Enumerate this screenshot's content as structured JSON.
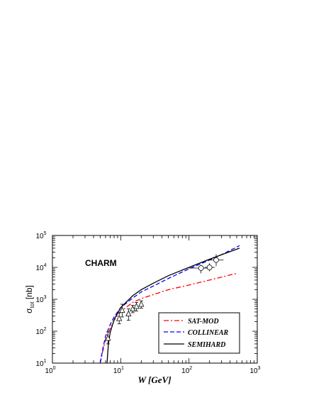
{
  "chart_data": {
    "type": "line",
    "xlabel": "W [GeV]",
    "ylabel": "σ_tot [nb]",
    "ylabel_main": "σ",
    "ylabel_sub": "tot",
    "ylabel_unit": " [nb]",
    "annotation": "CHARM",
    "x_scale": "log",
    "y_scale": "log",
    "xlim": [
      1,
      1000
    ],
    "ylim": [
      10,
      100000
    ],
    "x_ticks": [
      {
        "value": 1,
        "base": "10",
        "exp": "0"
      },
      {
        "value": 10,
        "base": "10",
        "exp": "1"
      },
      {
        "value": 100,
        "base": "10",
        "exp": "2"
      },
      {
        "value": 1000,
        "base": "10",
        "exp": "3"
      }
    ],
    "y_ticks": [
      {
        "value": 10,
        "base": "10",
        "exp": "1"
      },
      {
        "value": 100,
        "base": "10",
        "exp": "2"
      },
      {
        "value": 1000,
        "base": "10",
        "exp": "3"
      },
      {
        "value": 10000,
        "base": "10",
        "exp": "4"
      },
      {
        "value": 100000,
        "base": "10",
        "exp": "5"
      }
    ],
    "grid": false,
    "legend_position": "bottom-right",
    "series": [
      {
        "name": "SAT-MOD",
        "color": "#ff0000",
        "dash": "dashdot",
        "points": [
          [
            5,
            10
          ],
          [
            5.5,
            25
          ],
          [
            6,
            55
          ],
          [
            7,
            120
          ],
          [
            8,
            220
          ],
          [
            10,
            420
          ],
          [
            15,
            800
          ],
          [
            20,
            1050
          ],
          [
            30,
            1400
          ],
          [
            50,
            2000
          ],
          [
            100,
            2800
          ],
          [
            200,
            4000
          ],
          [
            500,
            6500
          ]
        ]
      },
      {
        "name": "COLLINEAR",
        "color": "#0000ff",
        "dash": "dash",
        "points": [
          [
            5,
            10
          ],
          [
            5.5,
            30
          ],
          [
            6,
            70
          ],
          [
            7,
            160
          ],
          [
            8,
            280
          ],
          [
            10,
            550
          ],
          [
            15,
            1100
          ],
          [
            20,
            1700
          ],
          [
            30,
            2600
          ],
          [
            50,
            4500
          ],
          [
            100,
            9000
          ],
          [
            200,
            17000
          ],
          [
            300,
            25000
          ],
          [
            550,
            48000
          ]
        ]
      },
      {
        "name": "SEMIHARD",
        "color": "#000000",
        "dash": "solid",
        "points": [
          [
            6.3,
            10
          ],
          [
            6.6,
            40
          ],
          [
            7,
            90
          ],
          [
            8,
            230
          ],
          [
            10,
            550
          ],
          [
            15,
            1300
          ],
          [
            20,
            2000
          ],
          [
            30,
            3200
          ],
          [
            50,
            5500
          ],
          [
            100,
            10000
          ],
          [
            200,
            18000
          ],
          [
            300,
            25000
          ],
          [
            550,
            40000
          ]
        ]
      }
    ],
    "data_points": {
      "triangles": [
        {
          "x": 6.5,
          "y": 60,
          "err_lo": 40,
          "err_hi": 95
        },
        {
          "x": 9.5,
          "y": 250,
          "err_lo": 170,
          "err_hi": 380
        },
        {
          "x": 10.5,
          "y": 450,
          "err_lo": 280,
          "err_hi": 700
        },
        {
          "x": 13,
          "y": 350,
          "err_lo": 220,
          "err_hi": 500
        },
        {
          "x": 15,
          "y": 500,
          "err_lo": 380,
          "err_hi": 650
        },
        {
          "x": 17,
          "y": 600,
          "err_lo": 430,
          "err_hi": 800
        },
        {
          "x": 20,
          "y": 700,
          "err_lo": 530,
          "err_hi": 900
        }
      ],
      "circles": [
        {
          "x": 150,
          "y": 9500,
          "x_lo": 100,
          "x_hi": 190,
          "err_lo": 6500,
          "err_hi": 12000
        },
        {
          "x": 200,
          "y": 10000,
          "x_lo": 170,
          "x_hi": 240,
          "err_lo": 7500,
          "err_hi": 13500
        },
        {
          "x": 250,
          "y": 17000,
          "x_lo": 180,
          "x_hi": 320,
          "err_lo": 11000,
          "err_hi": 26000
        }
      ]
    }
  }
}
